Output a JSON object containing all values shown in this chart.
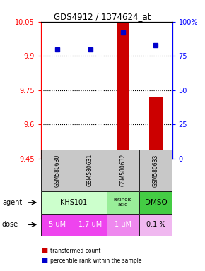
{
  "title": "GDS4912 / 1374624_at",
  "samples": [
    "GSM580630",
    "GSM580631",
    "GSM580632",
    "GSM580633"
  ],
  "bar_values": [
    9.469,
    9.471,
    10.05,
    9.72
  ],
  "bar_base": 9.45,
  "dot_values": [
    80.0,
    80.0,
    92.0,
    83.0
  ],
  "ylim_left": [
    9.45,
    10.05
  ],
  "ylim_right": [
    0,
    100
  ],
  "yticks_left": [
    9.45,
    9.6,
    9.75,
    9.9,
    10.05
  ],
  "yticks_right": [
    0,
    25,
    50,
    75,
    100
  ],
  "ytick_labels_left": [
    "9.45",
    "9.6",
    "9.75",
    "9.9",
    "10.05"
  ],
  "ytick_labels_right": [
    "0",
    "25",
    "50",
    "75",
    "100%"
  ],
  "hlines": [
    9.6,
    9.75,
    9.9
  ],
  "bar_color": "#cc0000",
  "dot_color": "#0000cc",
  "dose_labels": [
    "5 uM",
    "1.7 uM",
    "1 uM",
    "0.1 %"
  ],
  "dose_colors": [
    "#ee44ee",
    "#ee44ee",
    "#ee88ee",
    "#f0b8f0"
  ],
  "dose_text_colors": [
    "white",
    "white",
    "white",
    "black"
  ],
  "agent_khs101_color": "#ccffcc",
  "agent_retinoic_color": "#99ee99",
  "agent_dmso_color": "#44cc44",
  "sample_bg": "#c8c8c8",
  "legend_bar_label": "transformed count",
  "legend_dot_label": "percentile rank within the sample",
  "agent_row_label": "agent",
  "dose_row_label": "dose"
}
